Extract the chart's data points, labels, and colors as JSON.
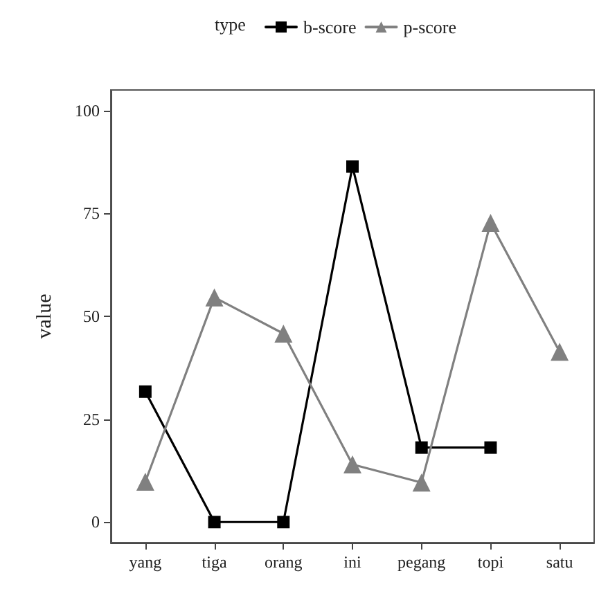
{
  "chart_data": {
    "type": "line",
    "ylabel": "value",
    "legend_title": "type",
    "categories": [
      "yang",
      "tiga",
      "orang",
      "ini",
      "pegang",
      "topi",
      "satu"
    ],
    "series": [
      {
        "name": "b-score",
        "color": "#000000",
        "marker": "square",
        "values": [
          31.7,
          0,
          0,
          86.4,
          18.1,
          18.1,
          null
        ]
      },
      {
        "name": "p-score",
        "color": "#808080",
        "marker": "triangle",
        "values": [
          9.8,
          54.6,
          45.8,
          14,
          9.6,
          72.7,
          41.4
        ]
      }
    ],
    "ylim": [
      -5,
      105
    ],
    "yticks": [
      0,
      25,
      50,
      75,
      100
    ],
    "grid": false,
    "legend": "top",
    "line_style": "solid"
  }
}
